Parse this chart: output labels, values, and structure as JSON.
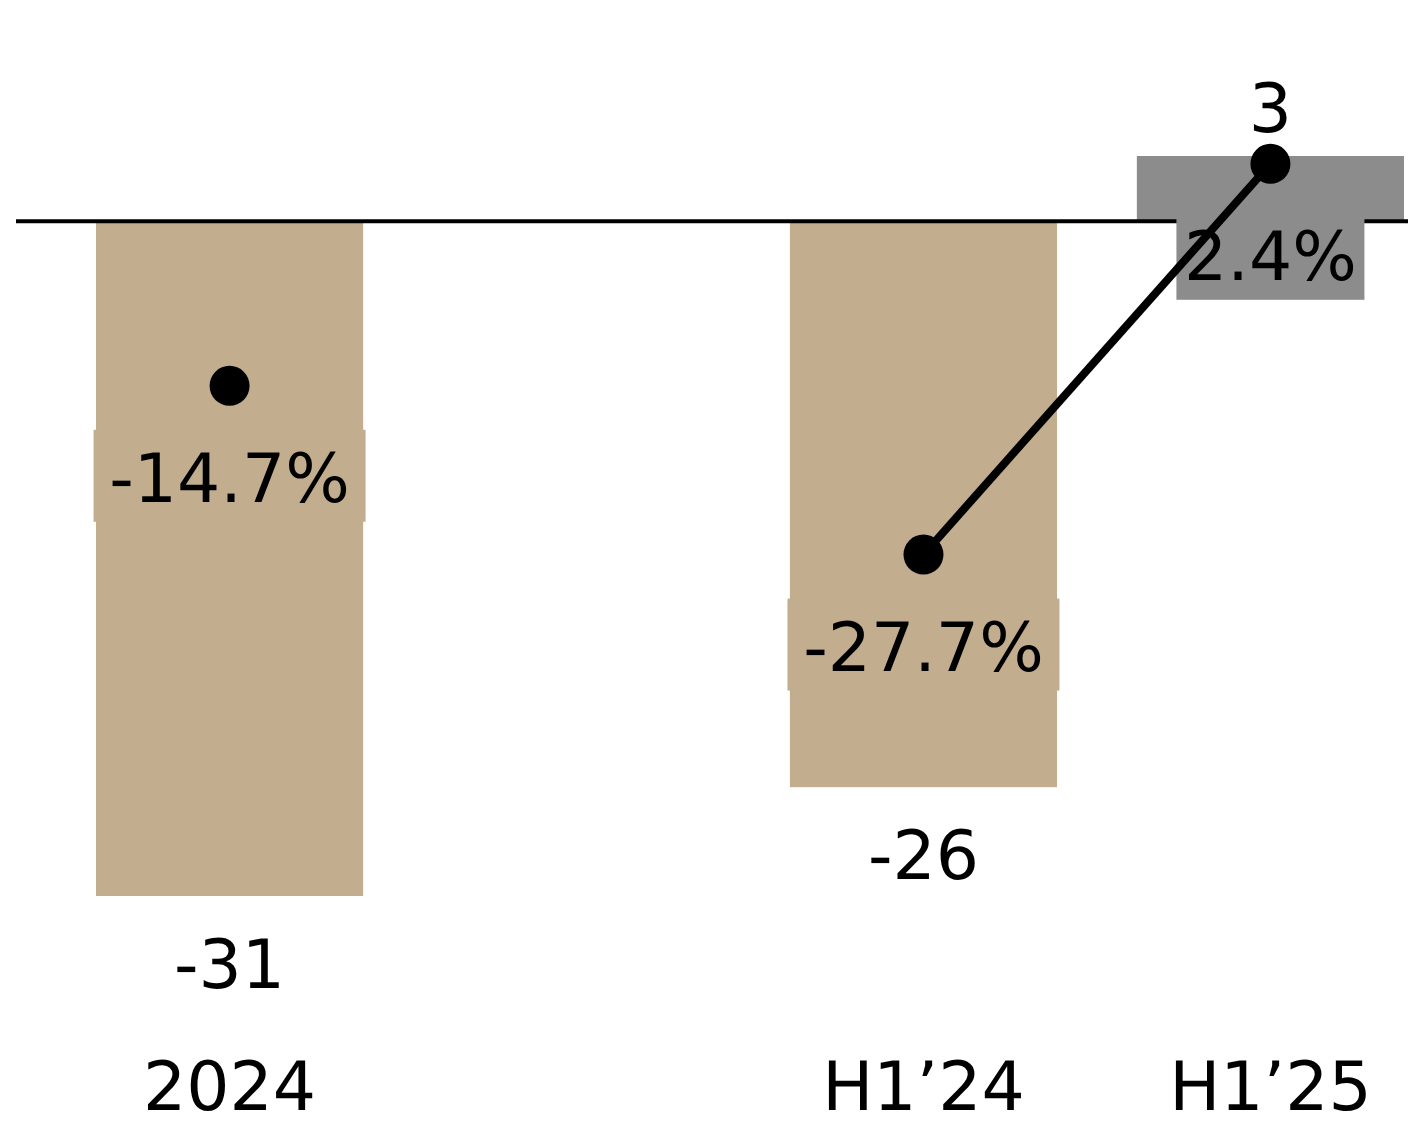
{
  "chart_data": {
    "type": "bar",
    "categories": [
      "2024",
      null,
      "H1’24",
      "H1’25"
    ],
    "colors": [
      "#c2ae8f",
      null,
      "#c2ae8f",
      "#8c8c8c"
    ],
    "values": [
      -31,
      null,
      -26,
      3
    ],
    "data_labels": true,
    "ylim": [
      -31,
      3
    ],
    "y2lim": [
      -54,
      3
    ],
    "series": [
      {
        "type": "scatter",
        "axis": "y2",
        "values": [
          -14.7,
          null,
          null,
          null
        ],
        "value_labels": [
          "-14.7%",
          null,
          null,
          null
        ],
        "color": "#000000"
      },
      {
        "type": "line",
        "axis": "y2",
        "values": [
          null,
          null,
          -27.7,
          2.4
        ],
        "value_labels": [
          null,
          null,
          "-27.7%",
          "2.4%"
        ],
        "color": "#000000"
      }
    ],
    "marker": "circle"
  }
}
